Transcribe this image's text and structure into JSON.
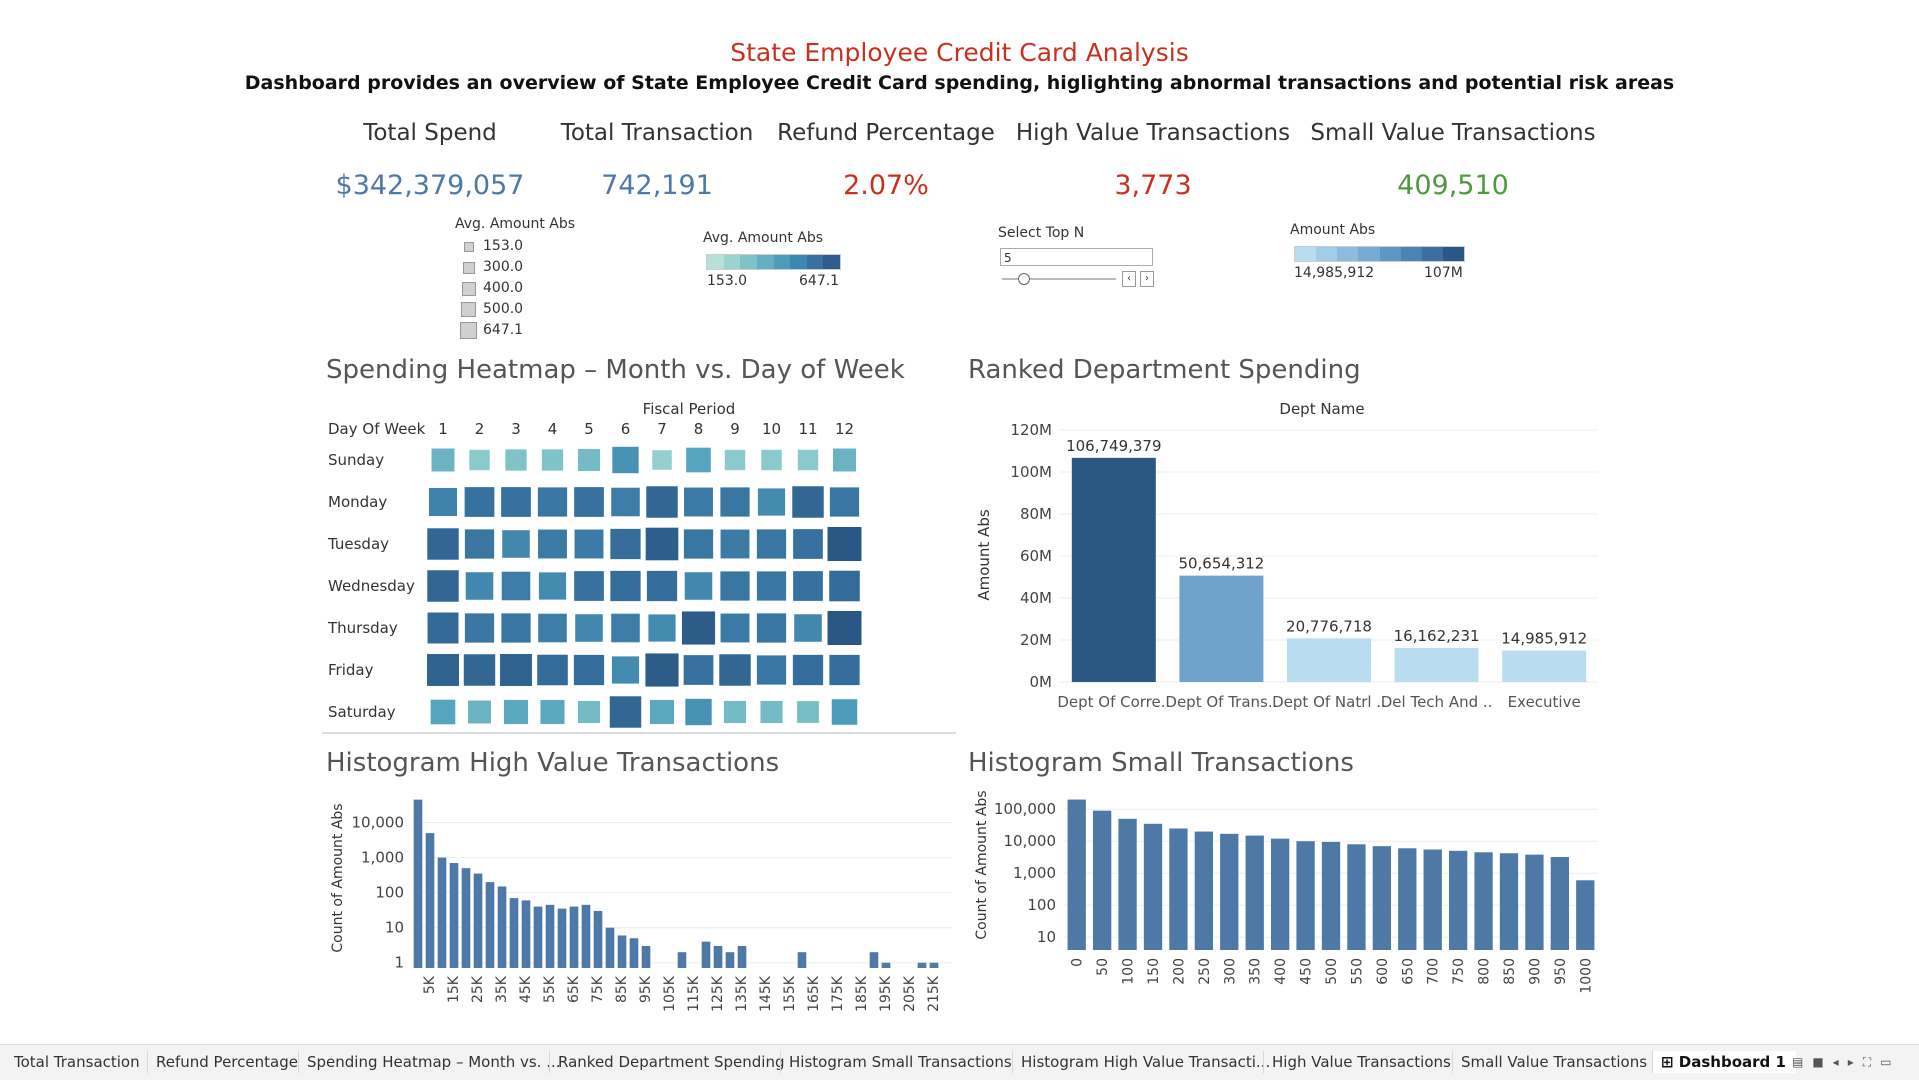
{
  "header": {
    "title": "State Employee Credit Card Analysis",
    "subtitle": "Dashboard provides an overview of State Employee Credit Card spending, higlighting abnormal transactions and potential risk areas"
  },
  "kpis": [
    {
      "label": "Total Spend",
      "value": "$342,379,057",
      "color": "#4e79a7"
    },
    {
      "label": "Total Transaction",
      "value": "742,191",
      "color": "#4e79a7"
    },
    {
      "label": "Refund Percentage",
      "value": "2.07%",
      "color": "#c8311f"
    },
    {
      "label": "High Value Transactions",
      "value": "3,773",
      "color": "#c8311f"
    },
    {
      "label": "Small Value Transactions",
      "value": "409,510",
      "color": "#4d9a3f"
    }
  ],
  "legends": {
    "size_legend": {
      "title": "Avg. Amount Abs",
      "items": [
        "153.0",
        "300.0",
        "400.0",
        "500.0",
        "647.1"
      ]
    },
    "color_legend": {
      "title": "Avg. Amount Abs",
      "min": "153.0",
      "max": "647.1"
    },
    "top_n": {
      "title": "Select Top N",
      "value": "5"
    },
    "amount_legend": {
      "title": "Amount Abs",
      "min": "14,985,912",
      "max": "107M"
    }
  },
  "heatmap": {
    "title": "Spending Heatmap – Month vs. Day of Week",
    "col_header": "Fiscal Period",
    "row_header": "Day Of Week",
    "columns": [
      "1",
      "2",
      "3",
      "4",
      "5",
      "6",
      "7",
      "8",
      "9",
      "10",
      "11",
      "12"
    ],
    "rows": [
      "Sunday",
      "Monday",
      "Tuesday",
      "Wednesday",
      "Thursday",
      "Friday",
      "Saturday"
    ],
    "values": [
      [
        0.35,
        0.2,
        0.25,
        0.25,
        0.3,
        0.55,
        0.15,
        0.45,
        0.2,
        0.2,
        0.2,
        0.35
      ],
      [
        0.65,
        0.75,
        0.75,
        0.72,
        0.75,
        0.68,
        0.85,
        0.7,
        0.72,
        0.6,
        0.85,
        0.72
      ],
      [
        0.85,
        0.72,
        0.62,
        0.7,
        0.7,
        0.78,
        0.92,
        0.72,
        0.7,
        0.72,
        0.75,
        1.0
      ],
      [
        0.85,
        0.62,
        0.68,
        0.6,
        0.75,
        0.78,
        0.78,
        0.62,
        0.72,
        0.72,
        0.75,
        0.8
      ],
      [
        0.82,
        0.72,
        0.72,
        0.68,
        0.62,
        0.68,
        0.6,
        0.95,
        0.7,
        0.72,
        0.62,
        1.0
      ],
      [
        0.88,
        0.85,
        0.88,
        0.8,
        0.78,
        0.6,
        0.95,
        0.75,
        0.85,
        0.72,
        0.78,
        0.78
      ],
      [
        0.45,
        0.35,
        0.42,
        0.42,
        0.3,
        0.85,
        0.42,
        0.55,
        0.3,
        0.3,
        0.28,
        0.5
      ]
    ]
  },
  "ranked": {
    "title": "Ranked Department Spending",
    "header": "Dept Name",
    "chart_data": {
      "type": "bar",
      "categories": [
        "Dept Of Corre..",
        "Dept Of Trans..",
        "Dept Of Natrl ..",
        "Del Tech And ..",
        "Executive"
      ],
      "values": [
        106749379,
        50654312,
        20776718,
        16162231,
        14985912
      ],
      "labels": [
        "106,749,379",
        "50,654,312",
        "20,776,718",
        "16,162,231",
        "14,985,912"
      ],
      "ylabel": "Amount Abs",
      "yticks": [
        "0M",
        "20M",
        "40M",
        "60M",
        "80M",
        "100M",
        "120M"
      ],
      "ylim": [
        0,
        120000000
      ],
      "colors": [
        "#2a5783",
        "#6fa3cb",
        "#b9dcf1",
        "#b9dcf1",
        "#b9dcf1"
      ]
    }
  },
  "hist_high": {
    "title": "Histogram High Value Transactions",
    "chart_data": {
      "type": "bar",
      "ylabel": "Count of Amount Abs",
      "scale": "log",
      "yticks": [
        "1",
        "10",
        "100",
        "1,000",
        "10,000"
      ],
      "xticks": [
        "5K",
        "15K",
        "25K",
        "35K",
        "45K",
        "55K",
        "65K",
        "75K",
        "85K",
        "95K",
        "105K",
        "115K",
        "125K",
        "135K",
        "145K",
        "155K",
        "165K",
        "175K",
        "185K",
        "195K",
        "205K",
        "215K"
      ],
      "counts": [
        45000,
        5000,
        1000,
        700,
        500,
        350,
        200,
        150,
        70,
        60,
        40,
        45,
        35,
        40,
        45,
        30,
        10,
        6,
        5,
        3,
        0,
        0,
        2,
        0,
        4,
        3,
        2,
        3,
        0,
        0,
        0,
        0,
        2,
        0,
        0,
        0,
        0,
        0,
        2,
        1,
        0,
        0,
        1,
        1,
        0
      ]
    }
  },
  "hist_small": {
    "title": "Histogram Small Transactions",
    "chart_data": {
      "type": "bar",
      "ylabel": "Count of Amount Abs",
      "scale": "log",
      "yticks": [
        "10",
        "100",
        "1,000",
        "10,000",
        "100,000"
      ],
      "x": [
        "0",
        "50",
        "100",
        "150",
        "200",
        "250",
        "300",
        "350",
        "400",
        "450",
        "500",
        "550",
        "600",
        "650",
        "700",
        "750",
        "800",
        "850",
        "900",
        "950",
        "1000"
      ],
      "counts": [
        200000,
        90000,
        50000,
        35000,
        25000,
        20000,
        17000,
        15000,
        12000,
        10000,
        9500,
        8000,
        7000,
        6000,
        5500,
        5000,
        4500,
        4200,
        3800,
        3200,
        600
      ]
    }
  },
  "tabs": [
    "Total Transaction",
    "Refund Percentage",
    "Spending Heatmap – Month vs. ...",
    "Ranked Department Spending",
    "Histogram Small Transactions",
    "Histogram High Value Transacti...",
    "High Value Transactions",
    "Small Value Transactions",
    "Dashboard 1"
  ],
  "active_tab": "Dashboard 1"
}
